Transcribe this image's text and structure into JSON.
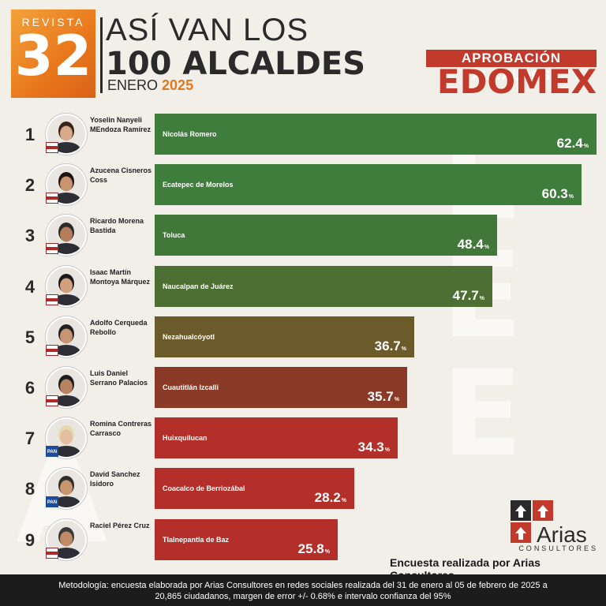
{
  "header": {
    "logo_top": "REVISTA",
    "logo_number": "32",
    "title_line1": "ASÍ VAN LOS",
    "title_line2": "100 ALCALDES",
    "month": "ENERO",
    "year": "2025",
    "tag": "APROBACIÓN ALCALDES",
    "region": "EDOMEX"
  },
  "chart_data": {
    "type": "bar",
    "orientation": "horizontal",
    "unit": "%",
    "xlim": [
      0,
      62.4
    ],
    "rows": [
      {
        "rank": "1",
        "name": "Yoselin Nanyeli MEndoza Ramírez",
        "municipality": "Nicolás Romero",
        "value": 62.4,
        "party": "morena",
        "color": "#3f7d3c"
      },
      {
        "rank": "2",
        "name": "Azucena Cisneros Coss",
        "municipality": "Ecatepec de Morelos",
        "value": 60.3,
        "party": "morena",
        "color": "#3f7d3c"
      },
      {
        "rank": "3",
        "name": "Ricardo Morena Bastida",
        "municipality": "Toluca",
        "value": 48.4,
        "party": "morena",
        "color": "#41783a"
      },
      {
        "rank": "4",
        "name": "Isaac Martín Montoya Márquez",
        "municipality": "Naucalpan de Juárez",
        "value": 47.7,
        "party": "morena",
        "color": "#4d6f33"
      },
      {
        "rank": "5",
        "name": "Adolfo Cerqueda Rebollo",
        "municipality": "Nezahualcóyotl",
        "value": 36.7,
        "party": "morena",
        "color": "#6b5a2a"
      },
      {
        "rank": "6",
        "name": "Luis Daniel Serrano Palacios",
        "municipality": "Cuautitlán Izcalli",
        "value": 35.7,
        "party": "morena",
        "color": "#8a3a26"
      },
      {
        "rank": "7",
        "name": "Romina Contreras Carrasco",
        "municipality": "Huixquilucan",
        "value": 34.3,
        "party": "PAN",
        "color": "#b22f2a"
      },
      {
        "rank": "8",
        "name": "David Sanchez Isidoro",
        "municipality": "Coacalco de Berriozábal",
        "value": 28.2,
        "party": "PAN",
        "color": "#b42e2a"
      },
      {
        "rank": "9",
        "name": "Raciel Pérez Cruz",
        "municipality": "Tlalnepantla de Baz",
        "value": 25.8,
        "party": "morena",
        "color": "#b42e2a"
      }
    ]
  },
  "footer": {
    "brand": "Arias",
    "brand_sub": "CONSULTORES",
    "credit": "Encuesta realizada por Arias Consultores",
    "methodology_line1": "Metodología: encuesta elaborada por Arias Consultores en redes sociales realizada del 31 de enero al 05 de febrero de 2025 a",
    "methodology_line2": "20,865 ciudadanos, margen de error +/- 0.68% e intervalo confianza del 95%"
  },
  "colors": {
    "accent_orange": "#e8761b",
    "accent_red": "#c23a2c",
    "green": "#3f7d3c"
  }
}
